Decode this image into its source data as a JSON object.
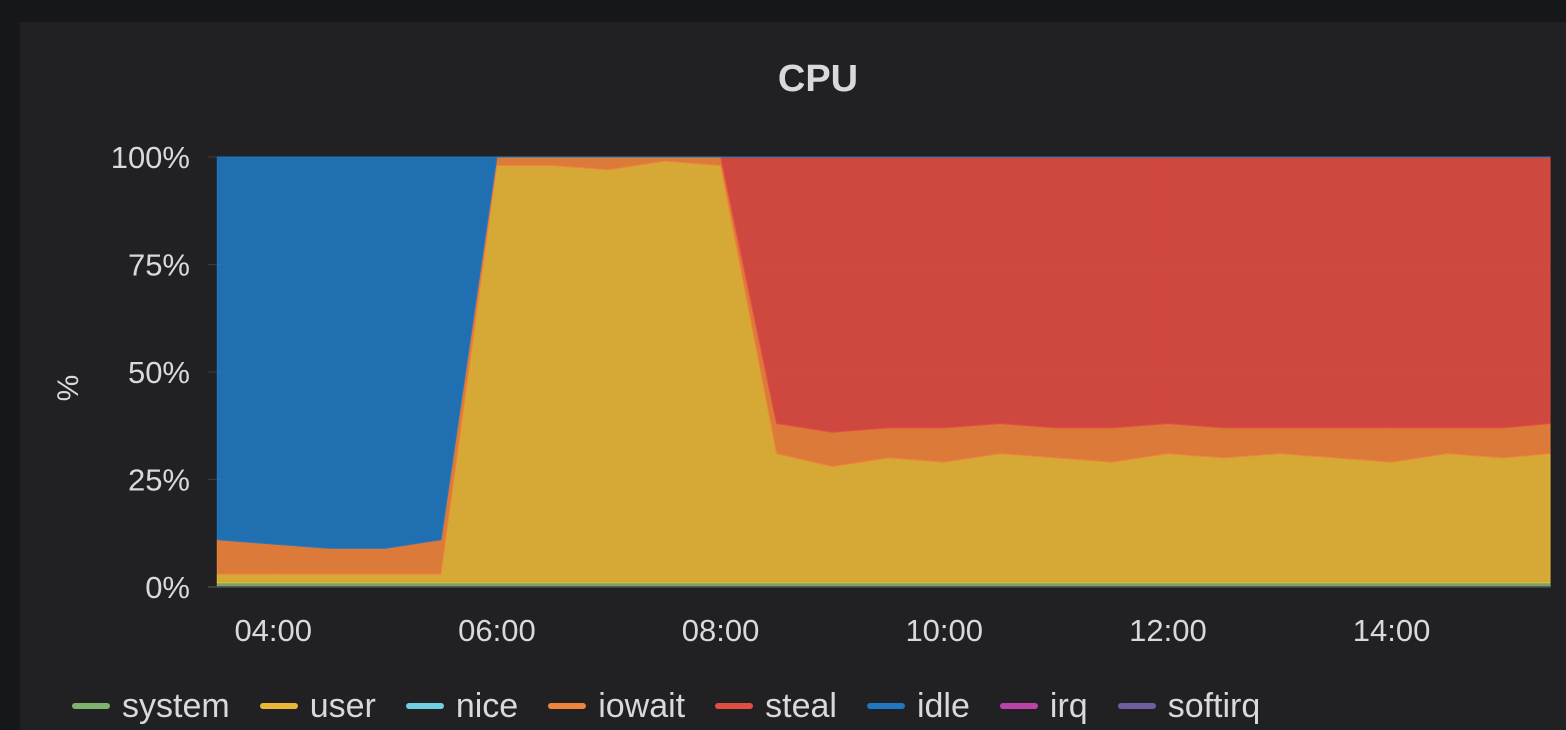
{
  "panel": {
    "title": "CPU"
  },
  "chart_data": {
    "type": "area",
    "title": "CPU",
    "ylabel": "%",
    "xlabel": "",
    "ylim": [
      0,
      100
    ],
    "xlim": [
      "03:25",
      "15:25"
    ],
    "yticks": [
      "0%",
      "25%",
      "50%",
      "75%",
      "100%"
    ],
    "xticks": [
      "04:00",
      "06:00",
      "08:00",
      "10:00",
      "12:00",
      "14:00"
    ],
    "stacked": true,
    "legend_position": "bottom",
    "x": [
      "03:30",
      "04:00",
      "04:30",
      "05:00",
      "05:30",
      "06:00",
      "06:30",
      "07:00",
      "07:30",
      "08:00",
      "08:30",
      "09:00",
      "09:30",
      "10:00",
      "10:30",
      "11:00",
      "11:30",
      "12:00",
      "12:30",
      "13:00",
      "13:30",
      "14:00",
      "14:30",
      "15:00",
      "15:25"
    ],
    "series": [
      {
        "name": "system",
        "color": "#7eb26d",
        "values": [
          1,
          1,
          1,
          1,
          1,
          1,
          1,
          1,
          1,
          1,
          1,
          1,
          1,
          1,
          1,
          1,
          1,
          1,
          1,
          1,
          1,
          1,
          1,
          1,
          1
        ]
      },
      {
        "name": "user",
        "color": "#eab839",
        "values": [
          2,
          2,
          2,
          2,
          2,
          97,
          97,
          96,
          98,
          97,
          30,
          27,
          29,
          28,
          30,
          29,
          28,
          30,
          29,
          30,
          29,
          28,
          30,
          29,
          30
        ]
      },
      {
        "name": "nice",
        "color": "#6ed0e0",
        "values": [
          0,
          0,
          0,
          0,
          0,
          0,
          0,
          0,
          0,
          0,
          0,
          0,
          0,
          0,
          0,
          0,
          0,
          0,
          0,
          0,
          0,
          0,
          0,
          0,
          0
        ]
      },
      {
        "name": "iowait",
        "color": "#ef843c",
        "values": [
          8,
          7,
          6,
          6,
          8,
          2,
          2,
          3,
          1,
          2,
          7,
          8,
          7,
          8,
          7,
          7,
          8,
          7,
          7,
          6,
          7,
          8,
          6,
          7,
          7
        ]
      },
      {
        "name": "steal",
        "color": "#e24d42",
        "values": [
          0,
          0,
          0,
          0,
          0,
          0,
          0,
          0,
          0,
          0,
          62,
          64,
          63,
          63,
          62,
          63,
          63,
          62,
          63,
          63,
          63,
          63,
          63,
          63,
          62
        ]
      },
      {
        "name": "idle",
        "color": "#1f78c1",
        "values": [
          89,
          90,
          91,
          91,
          89,
          0,
          0,
          0,
          0,
          0,
          0,
          0,
          0,
          0,
          0,
          0,
          0,
          0,
          0,
          0,
          0,
          0,
          0,
          0,
          0
        ]
      },
      {
        "name": "irq",
        "color": "#ba43a9",
        "values": [
          0,
          0,
          0,
          0,
          0,
          0,
          0,
          0,
          0,
          0,
          0,
          0,
          0,
          0,
          0,
          0,
          0,
          0,
          0,
          0,
          0,
          0,
          0,
          0,
          0
        ]
      },
      {
        "name": "softirq",
        "color": "#705da0",
        "values": [
          0,
          0,
          0,
          0,
          0,
          0,
          0,
          0,
          0,
          0,
          0,
          0,
          0,
          0,
          0,
          0,
          0,
          0,
          0,
          0,
          0,
          0,
          0,
          0,
          0
        ]
      }
    ]
  }
}
